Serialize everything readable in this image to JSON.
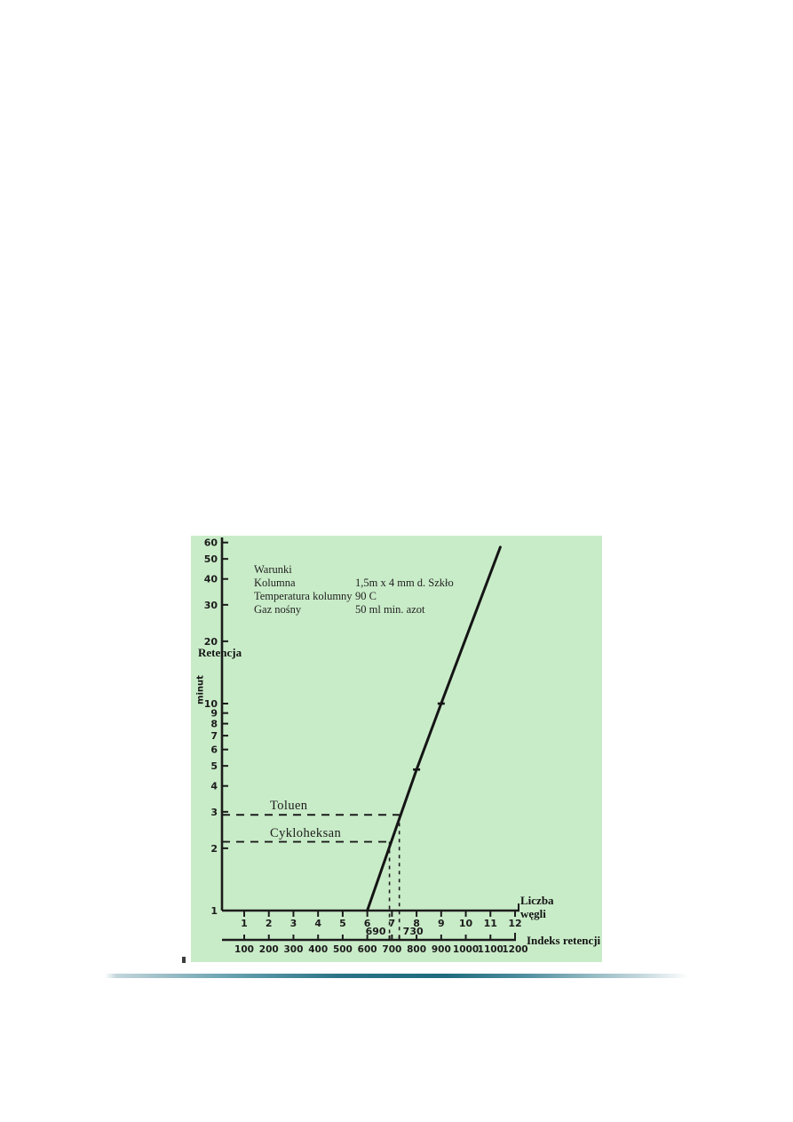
{
  "colors": {
    "panel_background": "#c9ecc8",
    "ink": "#1c1c1c",
    "divider_teal": "#1d6b7d"
  },
  "conditions": {
    "title": "Warunki",
    "rows": [
      {
        "label": "Kolumna",
        "value": "1,5m x 4 mm d. Szkło"
      },
      {
        "label": "Temperatura kolumny",
        "value": "90 C"
      },
      {
        "label": "Gaz nośny",
        "value": "50 ml min. azot"
      }
    ]
  },
  "labels": {
    "y_axis_title": "Retencja",
    "y_axis_unit": "minut",
    "x_axis_line1": "Liczba",
    "x_axis_line2": "węgli",
    "x2_axis_title": "Indeks retencji"
  },
  "chart_data": {
    "type": "line",
    "y_scale": "log",
    "ylabel": "Retencja",
    "ylabel_unit": "minut",
    "xlabel": "Liczba węgli",
    "x2label": "Indeks retencji",
    "ylim": [
      1,
      65
    ],
    "xlim": [
      0.5,
      12.5
    ],
    "x2lim": [
      50,
      1250
    ],
    "grid": false,
    "legend": false,
    "y_ticks": [
      60,
      50,
      40,
      30,
      20,
      10,
      9,
      8,
      7,
      6,
      5,
      4,
      3,
      2,
      1
    ],
    "x_ticks": [
      1,
      2,
      3,
      4,
      5,
      6,
      7,
      8,
      9,
      10,
      11,
      12
    ],
    "x2_ticks": [
      100,
      200,
      300,
      400,
      500,
      600,
      700,
      800,
      900,
      1000,
      1100,
      1200
    ],
    "series": [
      {
        "name": "reference_line",
        "points_x_carbon": [
          6,
          7,
          8,
          9,
          11.4
        ],
        "points_y_min": [
          1.0,
          2.2,
          4.8,
          10.0,
          57.0
        ],
        "markers": [
          [
            8,
            4.8
          ],
          [
            9,
            10.0
          ]
        ]
      }
    ],
    "annotations": [
      {
        "name": "Toluen",
        "retention_min": 2.9,
        "retention_index": 730,
        "index_label": "730"
      },
      {
        "name": "Cykloheksan",
        "retention_min": 2.15,
        "retention_index": 690,
        "index_label": "690"
      }
    ]
  }
}
